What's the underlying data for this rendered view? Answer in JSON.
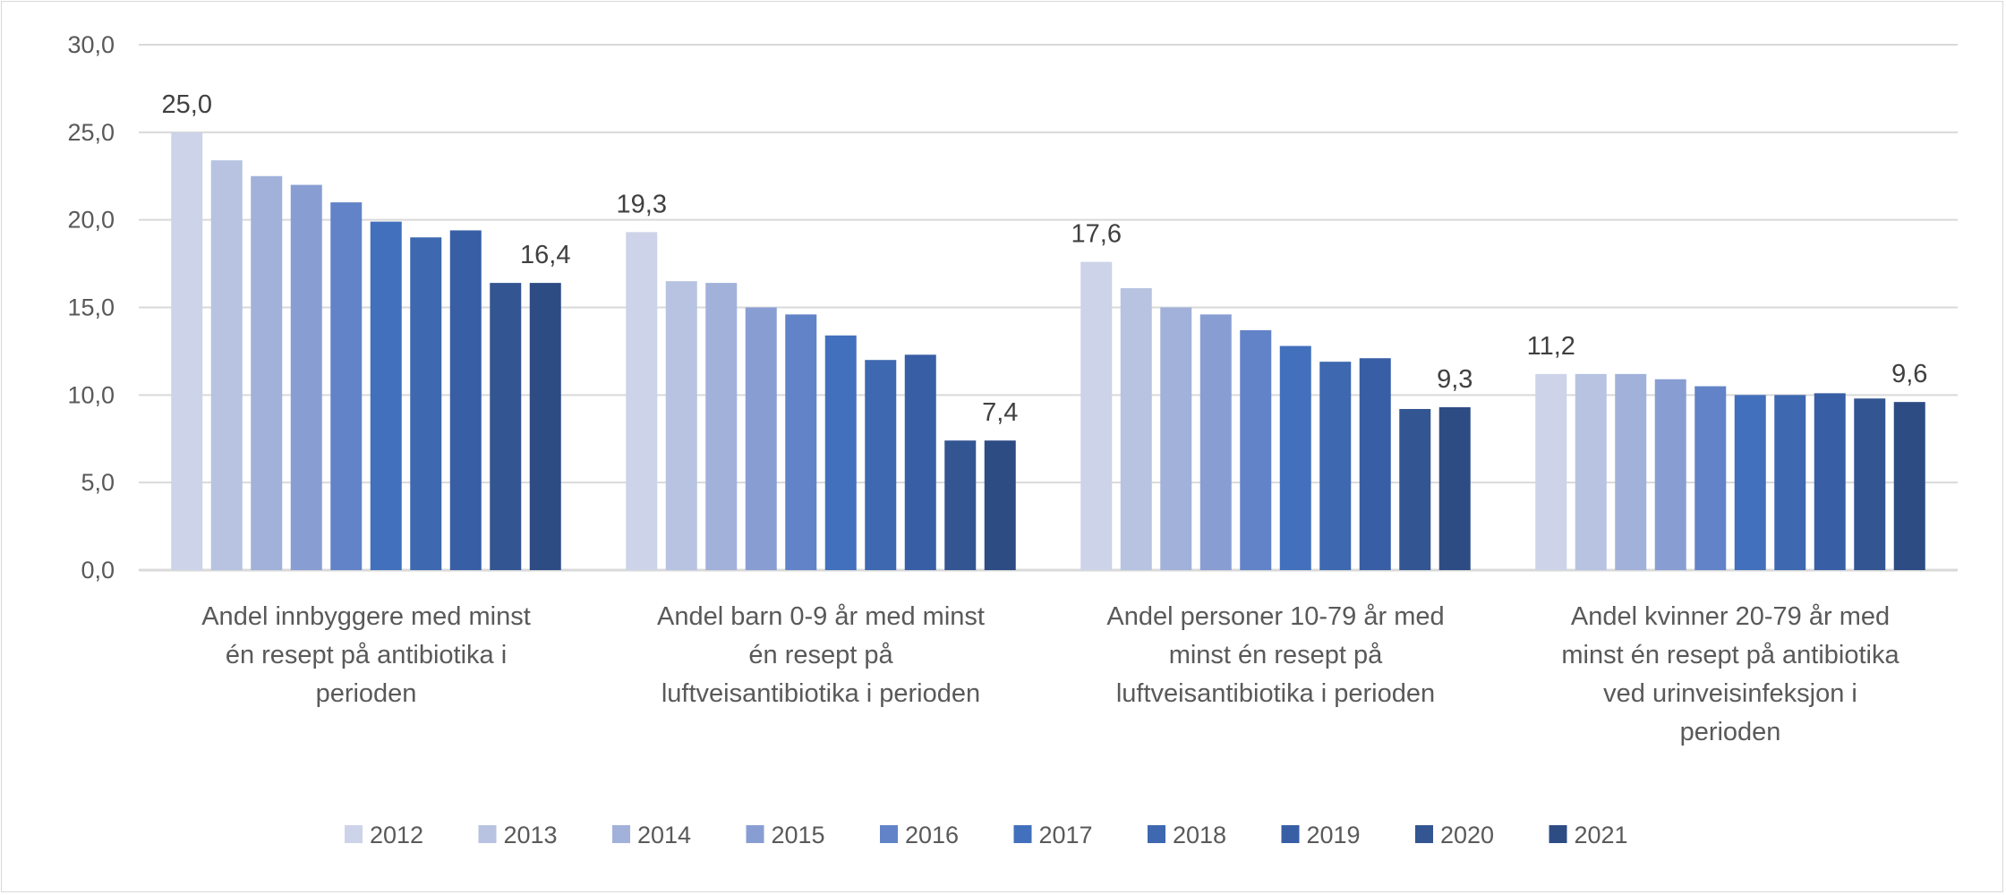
{
  "chart_data": {
    "type": "bar",
    "title": "",
    "xlabel": "",
    "ylabel": "",
    "ylim": [
      0,
      30
    ],
    "yticks": [
      "0,0",
      "5,0",
      "10,0",
      "15,0",
      "20,0",
      "25,0",
      "30,0"
    ],
    "grid": true,
    "legend_position": "bottom",
    "categories": [
      [
        "Andel innbyggere med minst",
        "én resept på antibiotika i",
        "perioden"
      ],
      [
        "Andel barn 0-9 år med minst",
        "én resept på",
        "luftveisantibiotika i perioden"
      ],
      [
        "Andel personer 10-79 år med",
        "minst én resept på",
        "luftveisantibiotika i perioden"
      ],
      [
        "Andel kvinner 20-79 år med",
        "minst én resept på antibiotika",
        "ved urinveisinfeksjon i",
        "perioden"
      ]
    ],
    "series": [
      {
        "name": "2012",
        "color": "#CDD3E8",
        "values": [
          25.0,
          19.3,
          17.6,
          11.2
        ],
        "labels": [
          "25,0",
          "19,3",
          "17,6",
          "11,2"
        ]
      },
      {
        "name": "2013",
        "color": "#B7C3E1",
        "values": [
          23.4,
          16.5,
          16.1,
          11.2
        ]
      },
      {
        "name": "2014",
        "color": "#A1B1DA",
        "values": [
          22.5,
          16.4,
          15.0,
          11.2
        ]
      },
      {
        "name": "2015",
        "color": "#889ED3",
        "values": [
          22.0,
          15.0,
          14.6,
          10.9
        ]
      },
      {
        "name": "2016",
        "color": "#6283C7",
        "values": [
          21.0,
          14.6,
          13.7,
          10.5
        ]
      },
      {
        "name": "2017",
        "color": "#4270BC",
        "values": [
          19.9,
          13.4,
          12.8,
          10.0
        ]
      },
      {
        "name": "2018",
        "color": "#3E68B0",
        "values": [
          19.0,
          12.0,
          11.9,
          10.0
        ]
      },
      {
        "name": "2019",
        "color": "#385EA5",
        "values": [
          19.4,
          12.3,
          12.1,
          10.1
        ]
      },
      {
        "name": "2020",
        "color": "#335592",
        "values": [
          16.4,
          7.4,
          9.2,
          9.8
        ]
      },
      {
        "name": "2021",
        "color": "#2D4C84",
        "values": [
          16.4,
          7.4,
          9.3,
          9.6
        ],
        "labels": [
          "16,4",
          "7,4",
          "9,3",
          "9,6"
        ]
      }
    ]
  }
}
